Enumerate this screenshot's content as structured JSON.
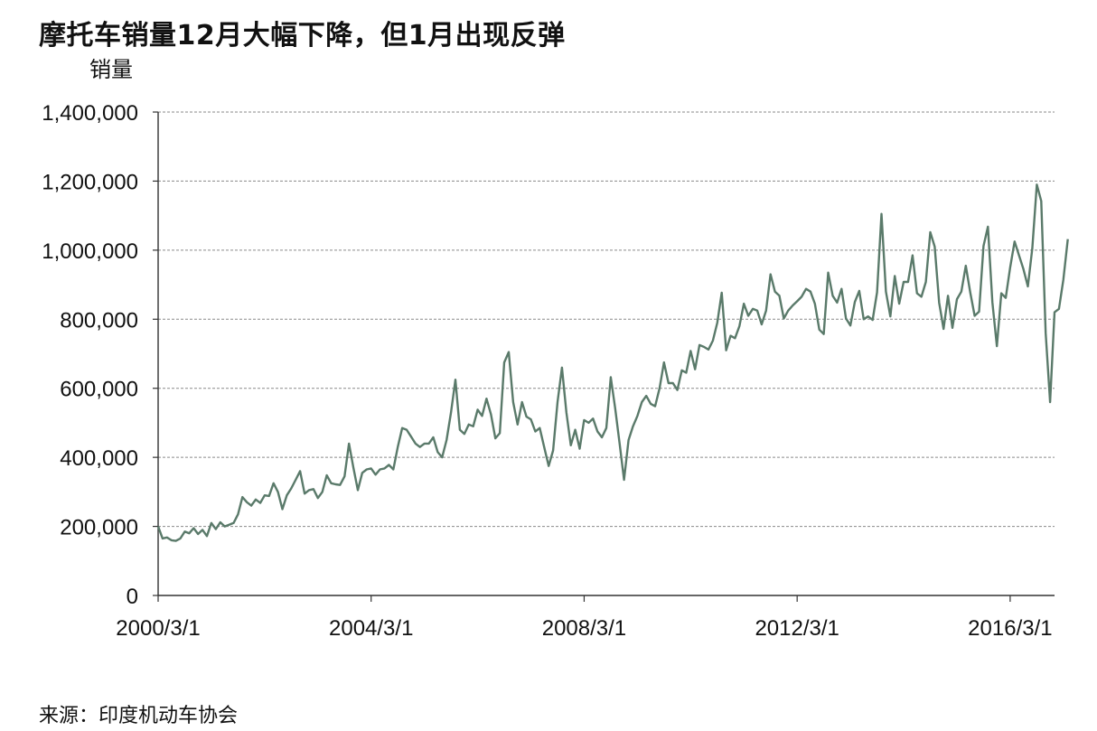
{
  "chart_data": {
    "type": "line",
    "title": "摩托车销量12月大幅下降，但1月出现反弹",
    "ylabel": "销量",
    "source": "来源：印度机动车协会",
    "x_start": "2000-03",
    "x_end": "2017-01",
    "ylim": [
      0,
      1400000
    ],
    "yticks": [
      0,
      200000,
      400000,
      600000,
      800000,
      1000000,
      1200000,
      1400000
    ],
    "ytick_labels": [
      "0",
      "200,000",
      "400,000",
      "600,000",
      "800,000",
      "1,000,000",
      "1,200,000",
      "1,400,000"
    ],
    "xtick_labels": [
      "2000/3/1",
      "2004/3/1",
      "2008/3/1",
      "2012/3/1",
      "2016/3/1"
    ],
    "xtick_dates": [
      "2000-03",
      "2004-03",
      "2008-03",
      "2012-03",
      "2016-03"
    ],
    "grid": "horizontal dashed",
    "line_color": "#5a7a6a",
    "series": [
      {
        "values": [
          200000,
          165000,
          168000,
          160000,
          158000,
          165000,
          185000,
          180000,
          195000,
          178000,
          190000,
          172000,
          210000,
          192000,
          212000,
          200000,
          205000,
          210000,
          235000,
          285000,
          270000,
          260000,
          278000,
          268000,
          290000,
          288000,
          325000,
          300000,
          250000,
          290000,
          310000,
          335000,
          360000,
          295000,
          305000,
          308000,
          282000,
          300000,
          348000,
          325000,
          322000,
          320000,
          345000,
          440000,
          370000,
          305000,
          355000,
          365000,
          368000,
          350000,
          365000,
          368000,
          378000,
          365000,
          430000,
          485000,
          480000,
          460000,
          440000,
          430000,
          440000,
          440000,
          458000,
          415000,
          400000,
          450000,
          530000,
          625000,
          480000,
          468000,
          495000,
          490000,
          538000,
          520000,
          570000,
          525000,
          455000,
          470000,
          675000,
          705000,
          560000,
          495000,
          560000,
          518000,
          510000,
          475000,
          485000,
          430000,
          375000,
          420000,
          560000,
          660000,
          530000,
          435000,
          480000,
          425000,
          508000,
          500000,
          512000,
          475000,
          458000,
          485000,
          632000,
          542000,
          440000,
          335000,
          450000,
          490000,
          520000,
          560000,
          578000,
          555000,
          548000,
          600000,
          675000,
          615000,
          615000,
          595000,
          652000,
          645000,
          708000,
          655000,
          725000,
          720000,
          712000,
          738000,
          790000,
          877000,
          710000,
          752000,
          745000,
          780000,
          845000,
          810000,
          830000,
          825000,
          785000,
          825000,
          930000,
          880000,
          868000,
          802000,
          825000,
          840000,
          852000,
          865000,
          888000,
          880000,
          845000,
          770000,
          757000,
          935000,
          868000,
          848000,
          888000,
          802000,
          782000,
          850000,
          882000,
          800000,
          808000,
          798000,
          878000,
          1105000,
          880000,
          808000,
          925000,
          845000,
          908000,
          908000,
          985000,
          875000,
          865000,
          908000,
          1052000,
          1010000,
          848000,
          772000,
          868000,
          775000,
          858000,
          880000,
          955000,
          878000,
          810000,
          822000,
          1012000,
          1068000,
          850000,
          722000,
          875000,
          862000,
          950000,
          1025000,
          985000,
          945000,
          895000,
          1005000,
          1190000,
          1142000,
          760000,
          560000,
          820000,
          830000,
          915000,
          1032000
        ]
      }
    ]
  }
}
